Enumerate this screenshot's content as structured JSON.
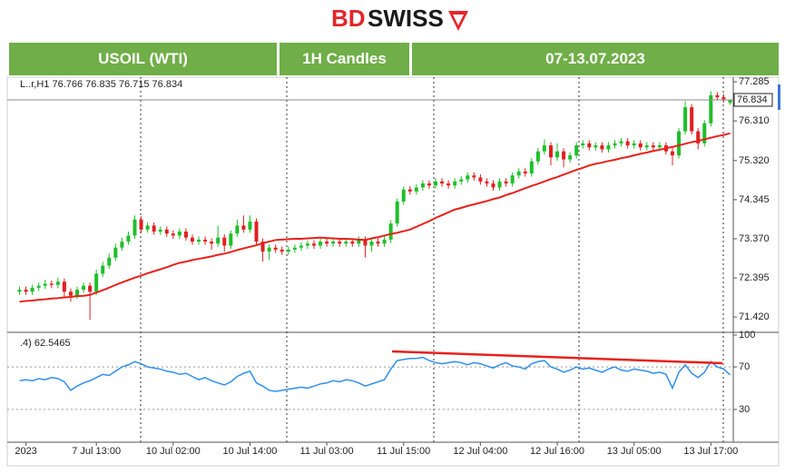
{
  "logo": {
    "left": "BD",
    "right": "SWISS"
  },
  "header": {
    "instrument": "USOIL (WTI)",
    "timeframe": "1H Candles",
    "period": "07-13.07.2023"
  },
  "chart_data": [
    {
      "type": "candlestick",
      "info_label": "L..r,H1  76.766 76.835 76.715 76.834",
      "categories": [
        null,
        "2023",
        null,
        null,
        null,
        null,
        null,
        null,
        null,
        null,
        null,
        null,
        "7 Jul 13:00",
        null,
        null,
        null,
        null,
        null,
        null,
        null,
        null,
        null,
        null,
        null,
        "10 Jul 02:00",
        null,
        null,
        null,
        null,
        null,
        null,
        null,
        null,
        null,
        null,
        null,
        "10 Jul 14:00",
        null,
        null,
        null,
        null,
        null,
        null,
        null,
        null,
        null,
        null,
        null,
        "11 Jul 03:00",
        null,
        null,
        null,
        null,
        null,
        null,
        null,
        null,
        null,
        null,
        null,
        "11 Jul 15:00",
        null,
        null,
        null,
        null,
        null,
        null,
        null,
        null,
        null,
        null,
        null,
        "12 Jul 04:00",
        null,
        null,
        null,
        null,
        null,
        null,
        null,
        null,
        null,
        null,
        null,
        "12 Jul 16:00",
        null,
        null,
        null,
        null,
        null,
        null,
        null,
        null,
        null,
        null,
        null,
        "13 Jul 05:00",
        null,
        null,
        null,
        null,
        null,
        null,
        null,
        null,
        null,
        null,
        null,
        "13 Jul 17:00",
        null,
        null,
        null
      ],
      "open": [
        72.05,
        72.1,
        72.05,
        72.15,
        72.2,
        72.25,
        72.22,
        72.3,
        72.05,
        71.95,
        72.1,
        72.2,
        72.05,
        72.5,
        72.7,
        72.9,
        73.15,
        73.3,
        73.45,
        73.85,
        73.6,
        73.7,
        73.55,
        73.6,
        73.5,
        73.45,
        73.55,
        73.4,
        73.3,
        73.35,
        73.3,
        73.25,
        73.4,
        73.2,
        73.5,
        73.7,
        73.6,
        73.8,
        73.3,
        73.05,
        73.15,
        73.1,
        73.05,
        73.1,
        73.15,
        73.2,
        73.25,
        73.2,
        73.3,
        73.25,
        73.3,
        73.25,
        73.3,
        73.25,
        73.35,
        73.2,
        73.3,
        73.25,
        73.35,
        73.75,
        74.3,
        74.6,
        74.55,
        74.65,
        74.75,
        74.7,
        74.8,
        74.75,
        74.7,
        74.8,
        74.85,
        74.95,
        74.9,
        74.8,
        74.75,
        74.65,
        74.8,
        74.75,
        74.95,
        75.05,
        75.0,
        75.3,
        75.55,
        75.7,
        75.4,
        75.55,
        75.35,
        75.45,
        75.7,
        75.75,
        75.65,
        75.7,
        75.6,
        75.7,
        75.75,
        75.8,
        75.7,
        75.75,
        75.65,
        75.7,
        75.65,
        75.7,
        75.55,
        75.45,
        76.05,
        76.65,
        76.05,
        75.75,
        76.25,
        76.95,
        76.9,
        76.766
      ],
      "high": [
        72.18,
        72.18,
        72.23,
        72.28,
        72.35,
        72.33,
        72.4,
        72.38,
        72.13,
        72.18,
        72.28,
        72.28,
        72.6,
        72.8,
        73.0,
        73.25,
        73.4,
        73.55,
        73.95,
        73.93,
        73.78,
        73.78,
        73.68,
        73.68,
        73.58,
        73.63,
        73.63,
        73.48,
        73.43,
        73.43,
        73.38,
        73.7,
        73.48,
        73.58,
        73.85,
        73.95,
        73.95,
        73.88,
        73.38,
        73.23,
        73.23,
        73.18,
        73.18,
        73.23,
        73.28,
        73.33,
        73.33,
        73.38,
        73.38,
        73.38,
        73.38,
        73.38,
        73.38,
        73.43,
        73.43,
        73.38,
        73.38,
        73.43,
        73.83,
        74.38,
        74.68,
        74.68,
        74.73,
        74.83,
        74.83,
        74.88,
        74.88,
        74.83,
        74.88,
        74.93,
        75.03,
        75.03,
        74.98,
        74.88,
        74.83,
        74.88,
        74.88,
        75.03,
        75.13,
        75.13,
        75.38,
        75.63,
        75.85,
        75.78,
        75.75,
        75.63,
        75.53,
        75.78,
        75.83,
        75.83,
        75.78,
        75.78,
        75.78,
        75.83,
        75.88,
        75.88,
        75.83,
        75.83,
        75.78,
        75.78,
        75.78,
        75.78,
        75.63,
        76.13,
        76.8,
        76.73,
        76.13,
        76.33,
        77.05,
        77.03,
        76.98,
        76.835
      ],
      "low": [
        71.97,
        71.97,
        71.97,
        72.07,
        72.12,
        72.14,
        72.14,
        71.9,
        71.8,
        71.87,
        72.02,
        71.35,
        71.97,
        72.42,
        72.62,
        72.82,
        73.07,
        73.22,
        73.37,
        73.52,
        73.52,
        73.47,
        73.47,
        73.42,
        73.37,
        73.37,
        73.32,
        73.22,
        73.22,
        73.22,
        73.1,
        73.17,
        73.05,
        73.12,
        73.42,
        73.52,
        73.52,
        73.22,
        72.8,
        72.85,
        73.02,
        72.97,
        72.97,
        73.02,
        73.07,
        73.12,
        73.12,
        73.12,
        73.17,
        73.17,
        73.17,
        73.17,
        73.17,
        73.17,
        72.9,
        73.05,
        73.17,
        73.17,
        73.27,
        73.67,
        74.22,
        74.47,
        74.47,
        74.57,
        74.62,
        74.62,
        74.67,
        74.62,
        74.62,
        74.72,
        74.77,
        74.82,
        74.72,
        74.67,
        74.57,
        74.57,
        74.67,
        74.67,
        74.87,
        74.92,
        74.92,
        75.22,
        75.47,
        75.2,
        75.32,
        75.15,
        75.27,
        75.37,
        75.62,
        75.57,
        75.57,
        75.52,
        75.52,
        75.62,
        75.67,
        75.62,
        75.62,
        75.57,
        75.57,
        75.57,
        75.57,
        75.47,
        75.2,
        75.37,
        75.97,
        75.97,
        75.6,
        75.67,
        76.17,
        76.82,
        76.77,
        76.715
      ],
      "close": [
        72.1,
        72.05,
        72.15,
        72.2,
        72.25,
        72.22,
        72.3,
        72.05,
        71.95,
        72.1,
        72.2,
        72.05,
        72.5,
        72.7,
        72.9,
        73.15,
        73.3,
        73.45,
        73.85,
        73.6,
        73.7,
        73.55,
        73.6,
        73.5,
        73.45,
        73.55,
        73.4,
        73.3,
        73.35,
        73.3,
        73.25,
        73.4,
        73.2,
        73.5,
        73.7,
        73.6,
        73.8,
        73.3,
        73.05,
        73.15,
        73.1,
        73.05,
        73.1,
        73.15,
        73.2,
        73.25,
        73.2,
        73.3,
        73.25,
        73.3,
        73.25,
        73.3,
        73.25,
        73.35,
        73.2,
        73.3,
        73.25,
        73.35,
        73.75,
        74.3,
        74.6,
        74.55,
        74.65,
        74.75,
        74.7,
        74.8,
        74.75,
        74.7,
        74.8,
        74.85,
        74.95,
        74.9,
        74.8,
        74.75,
        74.65,
        74.8,
        74.75,
        74.95,
        75.05,
        75.0,
        75.3,
        75.55,
        75.7,
        75.4,
        75.55,
        75.35,
        75.45,
        75.7,
        75.75,
        75.65,
        75.7,
        75.6,
        75.7,
        75.75,
        75.8,
        75.7,
        75.75,
        75.65,
        75.7,
        75.65,
        75.7,
        75.55,
        75.45,
        76.05,
        76.65,
        76.05,
        75.75,
        76.25,
        76.95,
        76.9,
        76.85,
        76.834
      ],
      "up_color": "#1fbf2a",
      "down_color": "#e02020",
      "overlay": {
        "color": "#e8201a",
        "values": [
          71.8,
          71.82,
          71.83,
          71.85,
          71.86,
          71.88,
          71.89,
          71.91,
          71.92,
          71.94,
          71.95,
          71.97,
          72.03,
          72.09,
          72.15,
          72.22,
          72.28,
          72.34,
          72.4,
          72.45,
          72.51,
          72.56,
          72.61,
          72.66,
          72.72,
          72.77,
          72.8,
          72.84,
          72.87,
          72.9,
          72.93,
          72.97,
          73.0,
          73.04,
          73.09,
          73.13,
          73.17,
          73.21,
          73.26,
          73.3,
          73.34,
          73.35,
          73.36,
          73.37,
          73.37,
          73.38,
          73.39,
          73.4,
          73.39,
          73.38,
          73.37,
          73.37,
          73.36,
          73.35,
          73.34,
          73.38,
          73.41,
          73.45,
          73.49,
          73.52,
          73.56,
          73.6,
          73.67,
          73.74,
          73.81,
          73.89,
          73.96,
          74.03,
          74.1,
          74.14,
          74.19,
          74.23,
          74.27,
          74.31,
          74.36,
          74.4,
          74.46,
          74.51,
          74.57,
          74.63,
          74.69,
          74.74,
          74.8,
          74.86,
          74.91,
          74.97,
          75.03,
          75.09,
          75.14,
          75.2,
          75.24,
          75.27,
          75.31,
          75.34,
          75.38,
          75.41,
          75.45,
          75.49,
          75.52,
          75.56,
          75.59,
          75.63,
          75.66,
          75.7,
          75.74,
          75.78,
          75.81,
          75.85,
          75.89,
          75.93,
          75.96,
          76.0
        ]
      },
      "last_price": 76.834,
      "ylim": [
        71.06,
        77.4
      ],
      "yticks": [
        77.285,
        {
          "value": 76.31,
          "label": "76.310"
        },
        {
          "value": 75.32,
          "label": "75.320"
        },
        74.345,
        {
          "value": 73.37,
          "label": "73.370"
        },
        72.395,
        {
          "value": 71.42,
          "label": "71.420"
        }
      ]
    },
    {
      "type": "line",
      "label": ".4) 62.5465",
      "color": "#2e8ff0",
      "values": [
        57,
        58,
        57,
        59,
        58,
        60,
        59,
        56,
        48,
        52,
        55,
        57,
        60,
        63,
        62,
        66,
        70,
        72,
        75,
        73,
        70,
        69,
        68,
        66,
        65,
        63,
        64,
        61,
        58,
        60,
        57,
        55,
        53,
        56,
        61,
        64,
        66,
        55,
        52,
        48,
        47,
        48,
        49,
        50,
        51,
        50,
        52,
        54,
        55,
        57,
        56,
        58,
        57,
        55,
        52,
        54,
        56,
        58,
        68,
        76,
        77,
        78,
        78,
        79,
        76,
        74,
        73,
        74,
        75,
        74,
        72,
        74,
        73,
        71,
        69,
        72,
        74,
        71,
        70,
        68,
        73,
        75,
        76,
        70,
        68,
        65,
        67,
        70,
        68,
        69,
        67,
        65,
        68,
        70,
        67,
        66,
        68,
        67,
        66,
        64,
        65,
        63,
        50,
        65,
        72,
        64,
        60,
        65,
        75,
        70,
        68,
        62.5465
      ],
      "ylim": [
        0,
        100
      ],
      "yticks": [
        100,
        70,
        30
      ]
    }
  ]
}
